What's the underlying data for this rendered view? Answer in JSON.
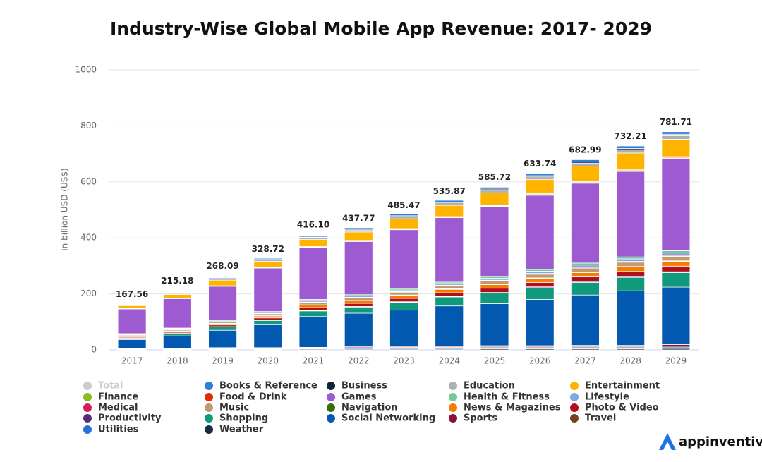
{
  "chart_data": {
    "type": "stacked_bar",
    "title": "Industry-Wise Global Mobile App Revenue: 2017- 2029",
    "y_axis_label": "in billion USD (US$)",
    "logo": "appinventiv",
    "categories": [
      "2017",
      "2018",
      "2019",
      "2020",
      "2021",
      "2022",
      "2023",
      "2024",
      "2025",
      "2026",
      "2027",
      "2028",
      "2029"
    ],
    "ylim": [
      0,
      1000
    ],
    "yticks": [
      0,
      200,
      400,
      600,
      800,
      1000
    ],
    "grid": true,
    "series": [
      {
        "name": "Total",
        "color": "#cccccc",
        "hidden": true,
        "values": [
          167.56,
          215.18,
          268.09,
          328.72,
          416.1,
          437.77,
          485.47,
          535.87,
          585.72,
          633.74,
          682.99,
          732.21,
          781.71
        ],
        "value_labels": [
          "167.56",
          "215.18",
          "268.09",
          "328.72",
          "416.10",
          "437.77",
          "485.47",
          "535.87",
          "585.72",
          "633.74",
          "682.99",
          "732.21",
          "781.71"
        ]
      },
      {
        "name": "Books & Reference",
        "color": "#2f7ed8",
        "values": [
          2,
          3,
          3,
          4,
          5,
          5,
          6,
          6,
          7,
          8,
          8,
          9,
          9
        ]
      },
      {
        "name": "Business",
        "color": "#0d233a",
        "values": [
          1,
          1,
          2,
          2,
          2,
          3,
          3,
          3,
          4,
          4,
          4,
          4,
          5
        ]
      },
      {
        "name": "Education",
        "color": "#b0b0b0",
        "values": [
          3,
          3,
          4,
          5,
          7,
          7,
          8,
          9,
          9,
          10,
          11,
          12,
          13
        ]
      },
      {
        "name": "Entertainment",
        "color": "#ffb400",
        "values": [
          10,
          13,
          20,
          22,
          25,
          30,
          35,
          40,
          45,
          50,
          55,
          60,
          62
        ]
      },
      {
        "name": "Finance",
        "color": "#8bbc21",
        "values": [
          1,
          1,
          1,
          1,
          2,
          2,
          2,
          2,
          2,
          3,
          3,
          3,
          3
        ]
      },
      {
        "name": "Food & Drink",
        "color": "#e5290f",
        "values": [
          1,
          1,
          1,
          1,
          2,
          2,
          2,
          2,
          2,
          3,
          3,
          3,
          3
        ]
      },
      {
        "name": "Games",
        "color": "#9e5bd1",
        "values": [
          88,
          105,
          120,
          155,
          185,
          190,
          210,
          230,
          250,
          265,
          285,
          305,
          330
        ]
      },
      {
        "name": "Health & Fitness",
        "color": "#77c99a",
        "values": [
          2,
          2,
          3,
          3,
          4,
          4,
          5,
          5,
          6,
          6,
          7,
          7,
          8
        ]
      },
      {
        "name": "Lifestyle",
        "color": "#7ea9e0",
        "values": [
          2,
          3,
          3,
          4,
          5,
          5,
          6,
          6,
          7,
          8,
          8,
          9,
          9
        ]
      },
      {
        "name": "Medical",
        "color": "#d81b60",
        "values": [
          1,
          1,
          1,
          1,
          2,
          2,
          2,
          2,
          2,
          3,
          3,
          3,
          3
        ]
      },
      {
        "name": "Music",
        "color": "#c49a6c",
        "values": [
          3,
          4,
          5,
          7,
          8,
          9,
          10,
          11,
          12,
          13,
          14,
          15,
          16
        ]
      },
      {
        "name": "Navigation",
        "color": "#3b6e0f",
        "values": [
          1,
          1,
          1,
          1,
          1,
          1,
          1,
          2,
          2,
          2,
          2,
          2,
          2
        ]
      },
      {
        "name": "News & Magazines",
        "color": "#f57c00",
        "values": [
          3,
          4,
          5,
          7,
          9,
          10,
          11,
          12,
          13,
          14,
          15,
          16,
          17
        ]
      },
      {
        "name": "Photo & Video",
        "color": "#b30f1a",
        "values": [
          3,
          4,
          6,
          8,
          10,
          11,
          12,
          13,
          15,
          16,
          17,
          18,
          20
        ]
      },
      {
        "name": "Productivity",
        "color": "#5b2a7a",
        "values": [
          1,
          1,
          1,
          1,
          2,
          2,
          2,
          2,
          2,
          3,
          3,
          3,
          3
        ]
      },
      {
        "name": "Shopping",
        "color": "#10997a",
        "values": [
          5,
          8,
          12,
          15,
          20,
          22,
          28,
          32,
          38,
          42,
          45,
          48,
          52
        ]
      },
      {
        "name": "Social Networking",
        "color": "#0358b0",
        "values": [
          33,
          45,
          62,
          82,
          110,
          120,
          130,
          145,
          150,
          165,
          180,
          195,
          205
        ]
      },
      {
        "name": "Sports",
        "color": "#8b0f3a",
        "values": [
          1,
          1,
          2,
          2,
          2,
          3,
          3,
          3,
          4,
          4,
          4,
          4,
          5
        ]
      },
      {
        "name": "Travel",
        "color": "#7a3f1f",
        "values": [
          1,
          1,
          2,
          2,
          2,
          2,
          3,
          3,
          3,
          3,
          4,
          4,
          4
        ]
      },
      {
        "name": "Utilities",
        "color": "#2a6fd6",
        "values": [
          1,
          1,
          2,
          2,
          2,
          3,
          3,
          3,
          4,
          4,
          4,
          4,
          5
        ]
      },
      {
        "name": "Weather",
        "color": "#1a2a44",
        "values": [
          1,
          2,
          2,
          2,
          3,
          3,
          3,
          3,
          4,
          4,
          4,
          4,
          5
        ]
      }
    ]
  }
}
